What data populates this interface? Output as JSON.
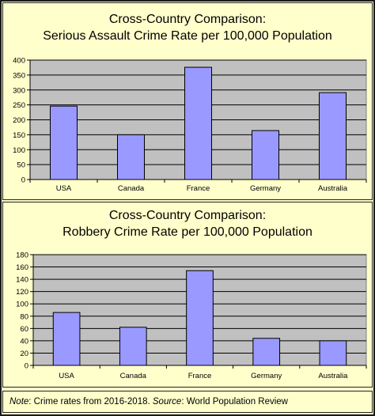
{
  "colors": {
    "bar_fill": "#9999FF",
    "bar_stroke": "#000000",
    "plot_bg": "#C0C0C0",
    "page_bg": "#FFFFCC"
  },
  "chart_data": [
    {
      "type": "bar",
      "title": "Cross-Country Comparison:",
      "subtitle": "Serious Assault Crime Rate per 100,000 Population",
      "categories": [
        "USA",
        "Canada",
        "France",
        "Germany",
        "Australia"
      ],
      "values": [
        246,
        150,
        376,
        164,
        291
      ],
      "ylim": [
        0,
        400
      ],
      "yticks": [
        0,
        50,
        100,
        150,
        200,
        250,
        300,
        350,
        400
      ],
      "grid": true,
      "legend": "none"
    },
    {
      "type": "bar",
      "title": "Cross-Country Comparison:",
      "subtitle": "Robbery Crime Rate per 100,000 Population",
      "categories": [
        "USA",
        "Canada",
        "France",
        "Germany",
        "Australia"
      ],
      "values": [
        86,
        62,
        154,
        44,
        40
      ],
      "ylim": [
        0,
        180
      ],
      "yticks": [
        0,
        20,
        40,
        60,
        80,
        100,
        120,
        140,
        160,
        180
      ],
      "grid": true,
      "legend": "none"
    }
  ],
  "note": {
    "label": "Note",
    "text": ": Crime rates from 2016-2018. ",
    "source_label": "Source",
    "source_text": ": World Population Review"
  }
}
